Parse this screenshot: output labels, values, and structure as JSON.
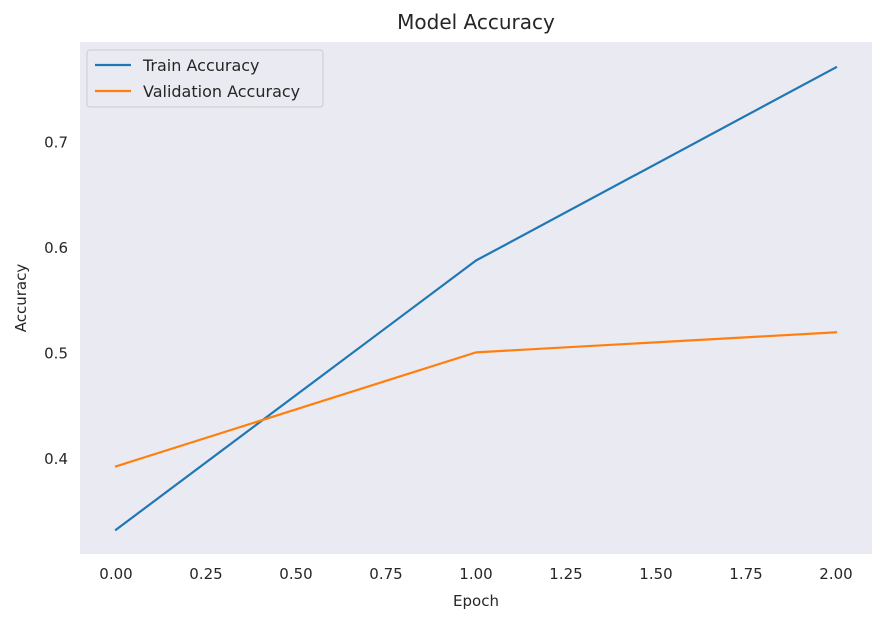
{
  "chart_data": {
    "type": "line",
    "title": "Model Accuracy",
    "xlabel": "Epoch",
    "ylabel": "Accuracy",
    "x": [
      0,
      1,
      2
    ],
    "series": [
      {
        "name": "Train Accuracy",
        "values": [
          0.333,
          0.588,
          0.771
        ],
        "color": "#1f77b4"
      },
      {
        "name": "Validation Accuracy",
        "values": [
          0.393,
          0.501,
          0.52
        ],
        "color": "#ff7f0e"
      }
    ],
    "xlim": [
      -0.1,
      2.1
    ],
    "ylim": [
      0.31,
      0.795
    ],
    "xticks": [
      0.0,
      0.25,
      0.5,
      0.75,
      1.0,
      1.25,
      1.5,
      1.75,
      2.0
    ],
    "xtick_labels": [
      "0.00",
      "0.25",
      "0.50",
      "0.75",
      "1.00",
      "1.25",
      "1.50",
      "1.75",
      "2.00"
    ],
    "yticks": [
      0.4,
      0.5,
      0.6,
      0.7
    ],
    "ytick_labels": [
      "0.4",
      "0.5",
      "0.6",
      "0.7"
    ],
    "grid": false,
    "legend_position": "top-left",
    "background_color": "#eaeaf2"
  }
}
